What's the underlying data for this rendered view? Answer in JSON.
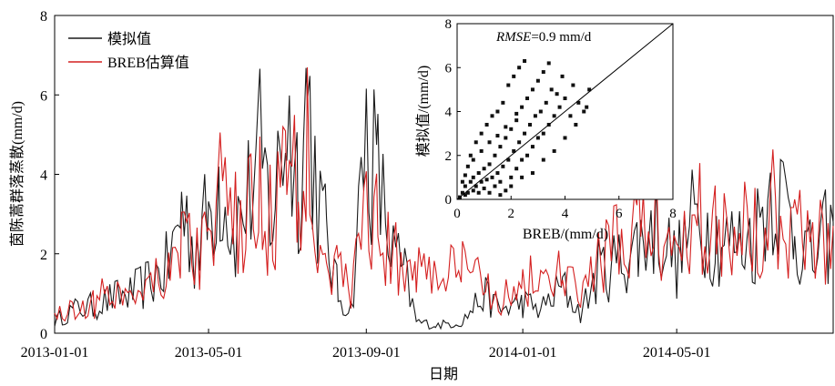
{
  "chart_data": [
    {
      "type": "line",
      "xlabel": "日期",
      "ylabel": "茵陈蒿群落蒸散(mm/d)",
      "ylim": [
        0,
        8
      ],
      "yticks": [
        0,
        2,
        4,
        6,
        8
      ],
      "xlim": [
        "2013-01-01",
        "2014-08-31"
      ],
      "xticks": [
        "2013-01-01",
        "2013-05-01",
        "2013-09-01",
        "2014-01-01",
        "2014-05-01"
      ],
      "legend_position": "top-left",
      "series": [
        {
          "name": "模拟值",
          "color": "#1a1a1a",
          "points": [
            [
              "2013-01-01",
              0.3
            ],
            [
              "2013-01-15",
              0.6
            ],
            [
              "2013-02-01",
              0.7
            ],
            [
              "2013-02-15",
              0.9
            ],
            [
              "2013-03-01",
              1.0
            ],
            [
              "2013-03-15",
              1.3
            ],
            [
              "2013-04-01",
              1.8
            ],
            [
              "2013-04-10",
              3.3
            ],
            [
              "2013-04-20",
              2.2
            ],
            [
              "2013-05-01",
              3.0
            ],
            [
              "2013-05-10",
              4.2
            ],
            [
              "2013-05-20",
              2.5
            ],
            [
              "2013-06-01",
              3.5
            ],
            [
              "2013-06-10",
              4.5
            ],
            [
              "2013-06-20",
              3.0
            ],
            [
              "2013-07-01",
              5.7
            ],
            [
              "2013-07-10",
              4.0
            ],
            [
              "2013-07-17",
              6.3
            ],
            [
              "2013-07-25",
              3.5
            ],
            [
              "2013-08-01",
              2.5
            ],
            [
              "2013-08-10",
              1.0
            ],
            [
              "2013-08-20",
              0.6
            ],
            [
              "2013-09-01",
              5.2
            ],
            [
              "2013-09-10",
              4.0
            ],
            [
              "2013-09-20",
              2.2
            ],
            [
              "2013-10-01",
              1.5
            ],
            [
              "2013-10-10",
              0.3
            ],
            [
              "2013-10-25",
              0.2
            ],
            [
              "2013-11-15",
              0.3
            ],
            [
              "2013-12-01",
              1.0
            ],
            [
              "2013-12-15",
              0.6
            ],
            [
              "2014-01-01",
              0.8
            ],
            [
              "2014-01-15",
              0.6
            ],
            [
              "2014-02-01",
              1.2
            ],
            [
              "2014-02-15",
              0.5
            ],
            [
              "2014-03-01",
              1.6
            ],
            [
              "2014-03-15",
              1.8
            ],
            [
              "2014-04-01",
              2.3
            ],
            [
              "2014-04-15",
              2.8
            ],
            [
              "2014-05-01",
              1.8
            ],
            [
              "2014-05-15",
              3.0
            ],
            [
              "2014-06-01",
              2.5
            ],
            [
              "2014-06-15",
              2.3
            ],
            [
              "2014-07-01",
              2.5
            ],
            [
              "2014-07-15",
              4.0
            ],
            [
              "2014-08-01",
              2.7
            ],
            [
              "2014-08-15",
              1.8
            ],
            [
              "2014-08-31",
              2.8
            ]
          ]
        },
        {
          "name": "BREB估算值",
          "color": "#d42020",
          "points": [
            [
              "2013-01-01",
              0.5
            ],
            [
              "2013-01-15",
              0.6
            ],
            [
              "2013-02-01",
              0.8
            ],
            [
              "2013-02-15",
              1.1
            ],
            [
              "2013-03-01",
              1.0
            ],
            [
              "2013-03-15",
              1.5
            ],
            [
              "2013-04-01",
              1.7
            ],
            [
              "2013-04-10",
              2.6
            ],
            [
              "2013-04-20",
              2.0
            ],
            [
              "2013-05-01",
              2.5
            ],
            [
              "2013-05-10",
              3.5
            ],
            [
              "2013-05-20",
              2.7
            ],
            [
              "2013-06-01",
              3.0
            ],
            [
              "2013-06-10",
              3.5
            ],
            [
              "2013-06-20",
              2.8
            ],
            [
              "2013-07-01",
              4.6
            ],
            [
              "2013-07-10",
              3.2
            ],
            [
              "2013-07-17",
              5.0
            ],
            [
              "2013-07-25",
              3.0
            ],
            [
              "2013-08-01",
              2.2
            ],
            [
              "2013-08-10",
              1.5
            ],
            [
              "2013-08-20",
              1.2
            ],
            [
              "2013-09-01",
              3.2
            ],
            [
              "2013-09-10",
              2.8
            ],
            [
              "2013-09-20",
              2.0
            ],
            [
              "2013-10-01",
              1.7
            ],
            [
              "2013-10-10",
              1.8
            ],
            [
              "2013-10-25",
              1.5
            ],
            [
              "2013-11-15",
              1.6
            ],
            [
              "2013-12-01",
              1.4
            ],
            [
              "2013-12-15",
              0.9
            ],
            [
              "2014-01-01",
              1.2
            ],
            [
              "2014-01-15",
              1.5
            ],
            [
              "2014-02-01",
              1.4
            ],
            [
              "2014-02-15",
              1.0
            ],
            [
              "2014-03-01",
              1.8
            ],
            [
              "2014-03-15",
              2.2
            ],
            [
              "2014-04-01",
              2.8
            ],
            [
              "2014-04-15",
              3.0
            ],
            [
              "2014-05-01",
              2.0
            ],
            [
              "2014-05-15",
              3.5
            ],
            [
              "2014-06-01",
              2.6
            ],
            [
              "2014-06-15",
              3.0
            ],
            [
              "2014-07-01",
              2.7
            ],
            [
              "2014-07-15",
              3.5
            ],
            [
              "2014-08-01",
              2.8
            ],
            [
              "2014-08-15",
              2.2
            ],
            [
              "2014-08-31",
              2.7
            ]
          ]
        }
      ]
    },
    {
      "type": "scatter",
      "xlabel": "BREB/(mm/d)",
      "ylabel": "模拟值/(mm/d)",
      "annotation": {
        "italic": "RMSE",
        "rest": "=0.9 mm/d"
      },
      "xlim": [
        0,
        8
      ],
      "ylim": [
        0,
        8
      ],
      "xticks": [
        0,
        2,
        4,
        6,
        8
      ],
      "yticks": [
        0,
        2,
        4,
        6,
        8
      ],
      "reference_line": "1:1",
      "point_color": "#111111",
      "points": [
        [
          0.1,
          0.1
        ],
        [
          0.2,
          0.3
        ],
        [
          0.3,
          0.2
        ],
        [
          0.3,
          0.6
        ],
        [
          0.4,
          0.3
        ],
        [
          0.5,
          0.8
        ],
        [
          0.6,
          0.4
        ],
        [
          0.6,
          1.0
        ],
        [
          0.7,
          0.6
        ],
        [
          0.8,
          0.3
        ],
        [
          0.8,
          1.2
        ],
        [
          0.9,
          0.8
        ],
        [
          1.0,
          0.5
        ],
        [
          1.0,
          1.4
        ],
        [
          1.1,
          0.9
        ],
        [
          1.2,
          0.3
        ],
        [
          1.2,
          1.6
        ],
        [
          1.3,
          1.0
        ],
        [
          1.4,
          0.6
        ],
        [
          1.4,
          2.0
        ],
        [
          1.5,
          1.2
        ],
        [
          1.6,
          0.8
        ],
        [
          1.6,
          2.4
        ],
        [
          1.7,
          1.5
        ],
        [
          1.8,
          0.4
        ],
        [
          1.8,
          2.8
        ],
        [
          1.9,
          1.8
        ],
        [
          2.0,
          1.0
        ],
        [
          2.0,
          3.2
        ],
        [
          2.1,
          2.2
        ],
        [
          2.2,
          1.4
        ],
        [
          2.2,
          3.6
        ],
        [
          2.3,
          2.6
        ],
        [
          2.4,
          1.8
        ],
        [
          2.4,
          4.2
        ],
        [
          2.5,
          3.0
        ],
        [
          2.6,
          2.0
        ],
        [
          2.6,
          4.6
        ],
        [
          2.7,
          3.4
        ],
        [
          2.8,
          2.4
        ],
        [
          2.8,
          5.0
        ],
        [
          2.9,
          3.8
        ],
        [
          3.0,
          2.8
        ],
        [
          3.0,
          5.4
        ],
        [
          3.1,
          4.0
        ],
        [
          3.2,
          3.0
        ],
        [
          3.2,
          5.8
        ],
        [
          3.3,
          4.4
        ],
        [
          3.4,
          3.4
        ],
        [
          3.5,
          5.0
        ],
        [
          3.6,
          3.8
        ],
        [
          3.7,
          4.8
        ],
        [
          3.8,
          4.2
        ],
        [
          3.9,
          5.6
        ],
        [
          4.0,
          4.6
        ],
        [
          4.2,
          3.8
        ],
        [
          4.3,
          5.2
        ],
        [
          4.5,
          4.4
        ],
        [
          4.7,
          4.0
        ],
        [
          4.9,
          5.0
        ],
        [
          0.2,
          0.8
        ],
        [
          0.4,
          1.5
        ],
        [
          0.5,
          2.0
        ],
        [
          0.7,
          2.6
        ],
        [
          0.9,
          3.0
        ],
        [
          1.1,
          3.4
        ],
        [
          1.3,
          3.8
        ],
        [
          1.5,
          4.0
        ],
        [
          1.7,
          4.4
        ],
        [
          1.9,
          5.2
        ],
        [
          2.1,
          5.6
        ],
        [
          2.3,
          6.0
        ],
        [
          3.4,
          6.2
        ],
        [
          2.5,
          6.3
        ],
        [
          1.6,
          0.2
        ],
        [
          2.0,
          0.6
        ],
        [
          2.4,
          1.0
        ],
        [
          2.8,
          1.2
        ],
        [
          3.2,
          1.8
        ],
        [
          3.6,
          2.2
        ],
        [
          4.0,
          2.8
        ],
        [
          4.4,
          3.4
        ],
        [
          4.8,
          4.2
        ],
        [
          0.3,
          1.1
        ],
        [
          0.6,
          1.8
        ],
        [
          0.9,
          2.2
        ],
        [
          1.2,
          2.6
        ],
        [
          1.5,
          2.9
        ],
        [
          1.8,
          3.3
        ],
        [
          2.2,
          3.9
        ]
      ]
    }
  ],
  "legend": {
    "items": [
      {
        "label": "模拟值",
        "color": "#1a1a1a"
      },
      {
        "label": "BREB估算值",
        "color": "#d42020"
      }
    ]
  }
}
